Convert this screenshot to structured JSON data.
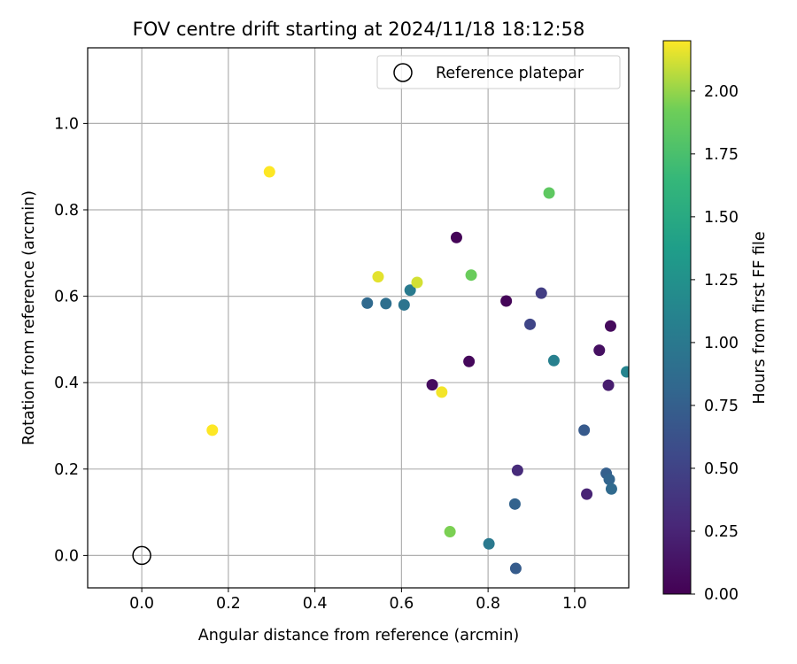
{
  "chart_data": {
    "type": "scatter",
    "title": "FOV centre drift starting at 2024/11/18 18:12:58",
    "xlabel": "Angular distance from reference (arcmin)",
    "ylabel": "Rotation from reference (arcmin)",
    "xlim": [
      -0.125,
      1.125
    ],
    "ylim": [
      -0.075,
      1.175
    ],
    "xticks": [
      0.0,
      0.2,
      0.4,
      0.6,
      0.8,
      1.0
    ],
    "xtick_labels": [
      "0.0",
      "0.2",
      "0.4",
      "0.6",
      "0.8",
      "1.0"
    ],
    "yticks": [
      0.0,
      0.2,
      0.4,
      0.6,
      0.8,
      1.0
    ],
    "ytick_labels": [
      "0.0",
      "0.2",
      "0.4",
      "0.6",
      "0.8",
      "1.0"
    ],
    "grid": true,
    "legend": {
      "placement": "upper right",
      "entries": [
        "Reference platepar"
      ]
    },
    "reference_point": {
      "x": 0.0,
      "y": 0.0,
      "label": "Reference platepar",
      "marker": "open-circle"
    },
    "colorbar": {
      "label": "Hours from first FF file",
      "colormap": "viridis",
      "range": [
        0.0,
        2.2
      ],
      "ticks": [
        0.0,
        0.25,
        0.5,
        0.75,
        1.0,
        1.25,
        1.5,
        1.75,
        2.0
      ],
      "tick_labels": [
        "0.00",
        "0.25",
        "0.50",
        "0.75",
        "1.00",
        "1.25",
        "1.50",
        "1.75",
        "2.00"
      ]
    },
    "points": [
      {
        "x": 0.727,
        "y": 0.736,
        "c": 0.02
      },
      {
        "x": 0.842,
        "y": 0.589,
        "c": 0.03
      },
      {
        "x": 0.756,
        "y": 0.449,
        "c": 0.05
      },
      {
        "x": 0.671,
        "y": 0.395,
        "c": 0.08
      },
      {
        "x": 1.083,
        "y": 0.531,
        "c": 0.06
      },
      {
        "x": 1.057,
        "y": 0.475,
        "c": 0.1
      },
      {
        "x": 1.078,
        "y": 0.394,
        "c": 0.2
      },
      {
        "x": 1.028,
        "y": 0.142,
        "c": 0.25
      },
      {
        "x": 0.868,
        "y": 0.197,
        "c": 0.3
      },
      {
        "x": 0.923,
        "y": 0.607,
        "c": 0.45
      },
      {
        "x": 0.897,
        "y": 0.535,
        "c": 0.52
      },
      {
        "x": 1.022,
        "y": 0.29,
        "c": 0.7
      },
      {
        "x": 1.073,
        "y": 0.19,
        "c": 0.75
      },
      {
        "x": 1.08,
        "y": 0.176,
        "c": 0.8
      },
      {
        "x": 1.085,
        "y": 0.154,
        "c": 0.85
      },
      {
        "x": 0.862,
        "y": 0.119,
        "c": 0.78
      },
      {
        "x": 0.864,
        "y": -0.03,
        "c": 0.72
      },
      {
        "x": 0.521,
        "y": 0.584,
        "c": 0.85
      },
      {
        "x": 0.564,
        "y": 0.583,
        "c": 0.9
      },
      {
        "x": 0.606,
        "y": 0.58,
        "c": 0.95
      },
      {
        "x": 0.62,
        "y": 0.614,
        "c": 1.02
      },
      {
        "x": 0.802,
        "y": 0.027,
        "c": 1.0
      },
      {
        "x": 0.952,
        "y": 0.451,
        "c": 1.08
      },
      {
        "x": 1.12,
        "y": 0.425,
        "c": 1.12
      },
      {
        "x": 0.941,
        "y": 0.839,
        "c": 1.85
      },
      {
        "x": 0.761,
        "y": 0.649,
        "c": 1.9
      },
      {
        "x": 0.712,
        "y": 0.055,
        "c": 1.95
      },
      {
        "x": 0.636,
        "y": 0.632,
        "c": 2.12
      },
      {
        "x": 0.546,
        "y": 0.645,
        "c": 2.15
      },
      {
        "x": 0.693,
        "y": 0.378,
        "c": 2.18
      },
      {
        "x": 0.295,
        "y": 0.888,
        "c": 2.2
      },
      {
        "x": 0.163,
        "y": 0.29,
        "c": 2.2
      }
    ]
  }
}
